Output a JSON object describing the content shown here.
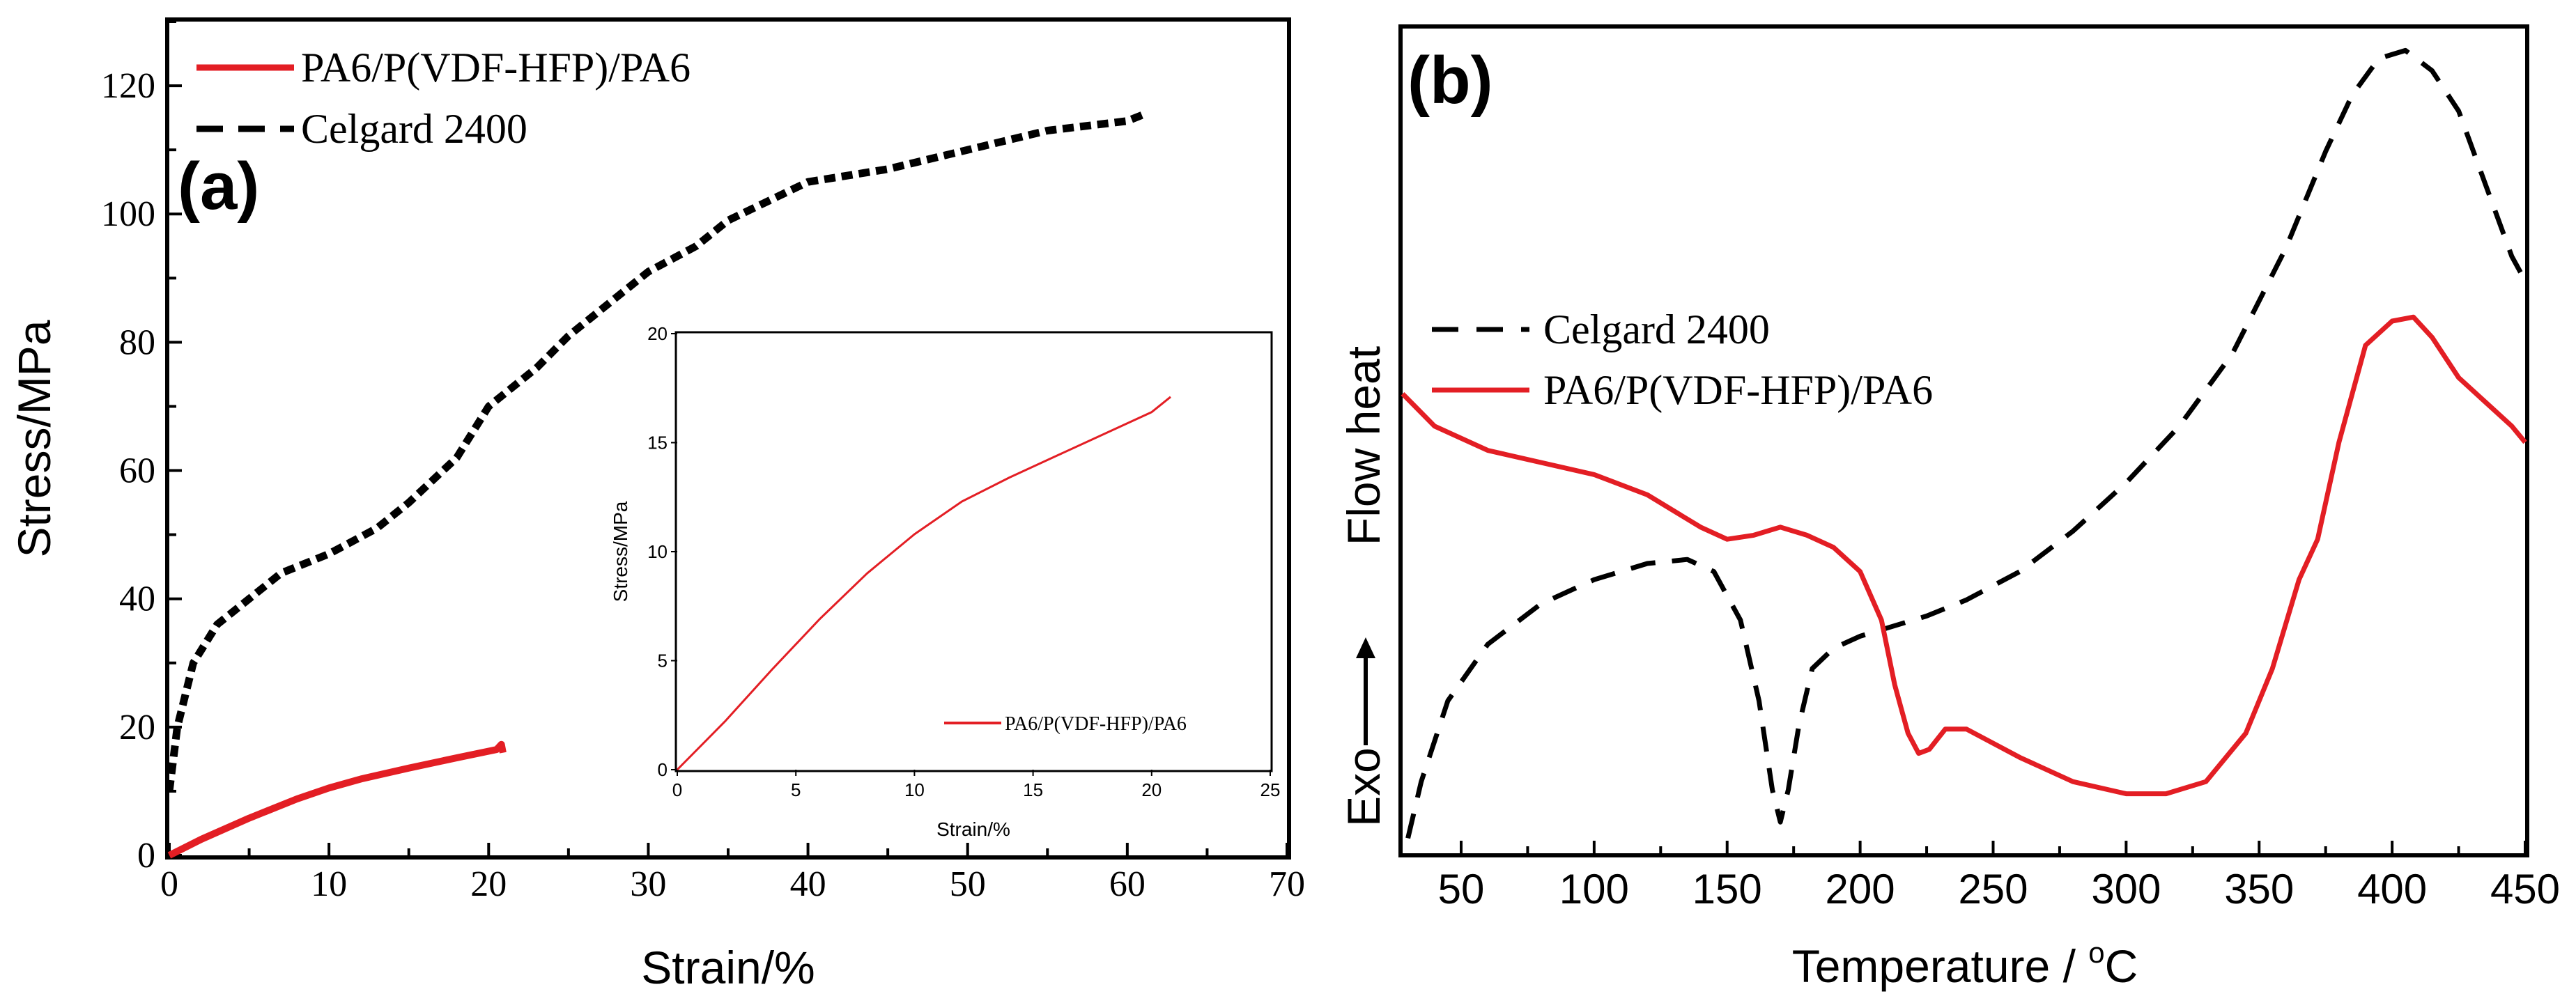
{
  "chart_data": [
    {
      "type": "line",
      "panel_label": "(a)",
      "xlabel": "Strain/%",
      "ylabel": "Stress/MPa",
      "xlim": [
        0,
        70
      ],
      "ylim": [
        0,
        130
      ],
      "x_ticks": [
        "0",
        "10",
        "20",
        "30",
        "40",
        "50",
        "60",
        "70"
      ],
      "y_ticks": [
        "0",
        "20",
        "40",
        "60",
        "80",
        "100",
        "120"
      ],
      "legend_position": "top-left",
      "series": [
        {
          "name": "PA6/P(VDF-HFP)/PA6",
          "color": "#e31e24",
          "style": "solid",
          "x": [
            0,
            2,
            5,
            8,
            10,
            12,
            15,
            18,
            20.5,
            20.8,
            20.9
          ],
          "y": [
            0,
            2.5,
            5.8,
            8.8,
            10.5,
            11.9,
            13.6,
            15.2,
            16.5,
            17.3,
            16.0
          ]
        },
        {
          "name": "Celgard 2400",
          "color": "#000000",
          "style": "dashed",
          "x": [
            0,
            0.5,
            1.5,
            3,
            5,
            7,
            10,
            13,
            15,
            18,
            20,
            23,
            25,
            28,
            30,
            33,
            35,
            40,
            45,
            50,
            55,
            60,
            61
          ],
          "y": [
            10,
            20,
            30,
            36,
            40,
            44,
            47,
            51,
            55,
            62,
            70,
            76,
            81,
            87,
            91,
            95,
            99,
            105,
            107,
            110,
            113,
            114.5,
            115.5
          ]
        }
      ]
    },
    {
      "type": "line",
      "panel_label": "inset",
      "xlabel": "Strain/%",
      "ylabel": "Stress/MPa",
      "xlim": [
        0,
        25
      ],
      "ylim": [
        0,
        20
      ],
      "x_ticks": [
        "0",
        "5",
        "10",
        "15",
        "20",
        "25"
      ],
      "y_ticks": [
        "0",
        "5",
        "10",
        "15",
        "20"
      ],
      "legend_position": "bottom-right",
      "series": [
        {
          "name": "PA6/P(VDF-HFP)/PA6",
          "color": "#e31e24",
          "style": "solid",
          "x": [
            0,
            2,
            4,
            6,
            8,
            10,
            12,
            14,
            16,
            18,
            20,
            20.8
          ],
          "y": [
            0,
            2.2,
            4.6,
            6.9,
            9.0,
            10.8,
            12.3,
            13.4,
            14.4,
            15.4,
            16.4,
            17.1
          ]
        }
      ]
    },
    {
      "type": "line",
      "panel_label": "(b)",
      "xlabel": "Temperature / ",
      "xlabel_unit": "oC",
      "ylabel": "Flow heat",
      "ylabel_lower": "Exo",
      "xlim": [
        28,
        450
      ],
      "ylim": [
        0,
        100
      ],
      "x_ticks": [
        "50",
        "100",
        "150",
        "200",
        "250",
        "300",
        "350",
        "400",
        "450"
      ],
      "legend_position": "center-left",
      "series": [
        {
          "name": "Celgard 2400",
          "color": "#000000",
          "style": "dashed",
          "x": [
            30,
            35,
            45,
            60,
            80,
            100,
            120,
            135,
            145,
            155,
            162,
            167,
            170,
            173,
            177,
            182,
            190,
            200,
            210,
            225,
            240,
            260,
            280,
            300,
            320,
            340,
            360,
            375,
            385,
            395,
            405,
            415,
            425,
            435,
            445,
            450
          ],
          "y": [
            1,
            8,
            18,
            25,
            30,
            33,
            35,
            35.5,
            34,
            28,
            18,
            7,
            3,
            7,
            15,
            22,
            24.5,
            26,
            27,
            28.5,
            30.5,
            34,
            39,
            45,
            52,
            61,
            74,
            86,
            93,
            97.5,
            98.5,
            96,
            91,
            82,
            73,
            70
          ]
        },
        {
          "name": "PA6/P(VDF-HFP)/PA6",
          "color": "#e31e24",
          "style": "solid",
          "x": [
            28,
            40,
            60,
            80,
            100,
            120,
            140,
            150,
            160,
            170,
            180,
            190,
            200,
            208,
            213,
            218,
            222,
            226,
            232,
            240,
            260,
            280,
            300,
            315,
            330,
            345,
            355,
            365,
            372,
            380,
            390,
            400,
            408,
            415,
            425,
            435,
            445,
            450
          ],
          "y": [
            56,
            52,
            49,
            47.5,
            46,
            43.5,
            39.5,
            38,
            38.5,
            39.5,
            38.5,
            37,
            34,
            28,
            20,
            14,
            11.5,
            12,
            14.5,
            14.5,
            11,
            8,
            6.5,
            6.5,
            8,
            14,
            22,
            33,
            38,
            50,
            62,
            65,
            65.5,
            63,
            58,
            55,
            52,
            50
          ]
        }
      ]
    }
  ]
}
